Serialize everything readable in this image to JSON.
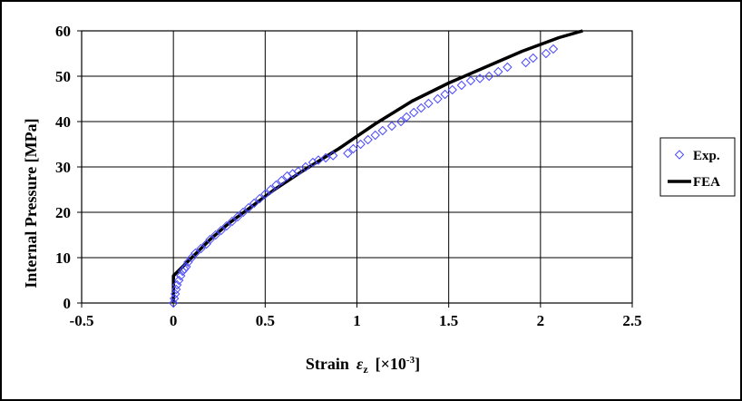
{
  "chart_data": {
    "type": "scatter",
    "title": "",
    "xlabel": "Strain",
    "xlabel_symbol": "ε",
    "xlabel_subscript": "z",
    "xlabel_unit_open": "[×10",
    "xlabel_unit_exp": "-3",
    "xlabel_unit_close": "]",
    "ylabel": "Internal Pressure [MPa]",
    "xlim": [
      -0.5,
      2.5
    ],
    "ylim": [
      0,
      60
    ],
    "xticks": [
      -0.5,
      0,
      0.5,
      1,
      1.5,
      2,
      2.5
    ],
    "xtick_labels": [
      "-0.5",
      "0",
      "0.5",
      "1",
      "1.5",
      "2",
      "2.5"
    ],
    "yticks": [
      0,
      10,
      20,
      30,
      40,
      50,
      60
    ],
    "ytick_labels": [
      "0",
      "10",
      "20",
      "30",
      "40",
      "50",
      "60"
    ],
    "grid": true,
    "legend_position": "right",
    "colors": {
      "exp": "#4a4aff",
      "fea": "#000000",
      "grid": "#000000",
      "frame": "#000000"
    },
    "series": [
      {
        "name": "Exp.",
        "kind": "marker",
        "marker": "diamond",
        "x": [
          0.0,
          0.005,
          0.01,
          0.015,
          0.02,
          0.03,
          0.04,
          0.05,
          0.06,
          0.07,
          0.08,
          0.1,
          0.12,
          0.15,
          0.18,
          0.2,
          0.23,
          0.26,
          0.29,
          0.32,
          0.35,
          0.38,
          0.41,
          0.44,
          0.47,
          0.5,
          0.53,
          0.56,
          0.59,
          0.62,
          0.65,
          0.68,
          0.72,
          0.76,
          0.79,
          0.83,
          0.87,
          0.95,
          0.98,
          1.02,
          1.06,
          1.1,
          1.14,
          1.19,
          1.24,
          1.27,
          1.31,
          1.35,
          1.39,
          1.44,
          1.48,
          1.52,
          1.57,
          1.62,
          1.67,
          1.72,
          1.77,
          1.82,
          1.92,
          1.96,
          2.03,
          2.07
        ],
        "y": [
          0,
          1,
          2,
          3,
          4,
          5,
          6,
          7,
          7.5,
          8,
          9,
          10,
          11,
          12,
          13,
          14,
          15,
          16,
          17,
          18,
          19,
          20,
          21,
          22,
          23,
          24,
          25,
          26,
          27,
          28,
          28.5,
          29,
          30,
          31,
          31.5,
          32,
          32.5,
          33,
          34,
          35,
          36,
          37,
          38,
          39,
          40,
          41,
          42,
          43,
          44,
          45,
          46,
          47,
          48,
          49,
          49.5,
          50,
          51,
          52,
          53,
          54,
          55,
          56
        ]
      },
      {
        "name": "FEA",
        "kind": "line",
        "x": [
          0.0,
          0.0,
          0.05,
          0.1,
          0.2,
          0.3,
          0.4,
          0.55,
          0.7,
          0.9,
          1.1,
          1.3,
          1.5,
          1.7,
          1.9,
          2.1,
          2.23
        ],
        "y": [
          0,
          6,
          8,
          10,
          14,
          17.5,
          20.5,
          25,
          29,
          34,
          39.5,
          44.5,
          48.5,
          52,
          55.5,
          58.5,
          60
        ]
      }
    ]
  }
}
